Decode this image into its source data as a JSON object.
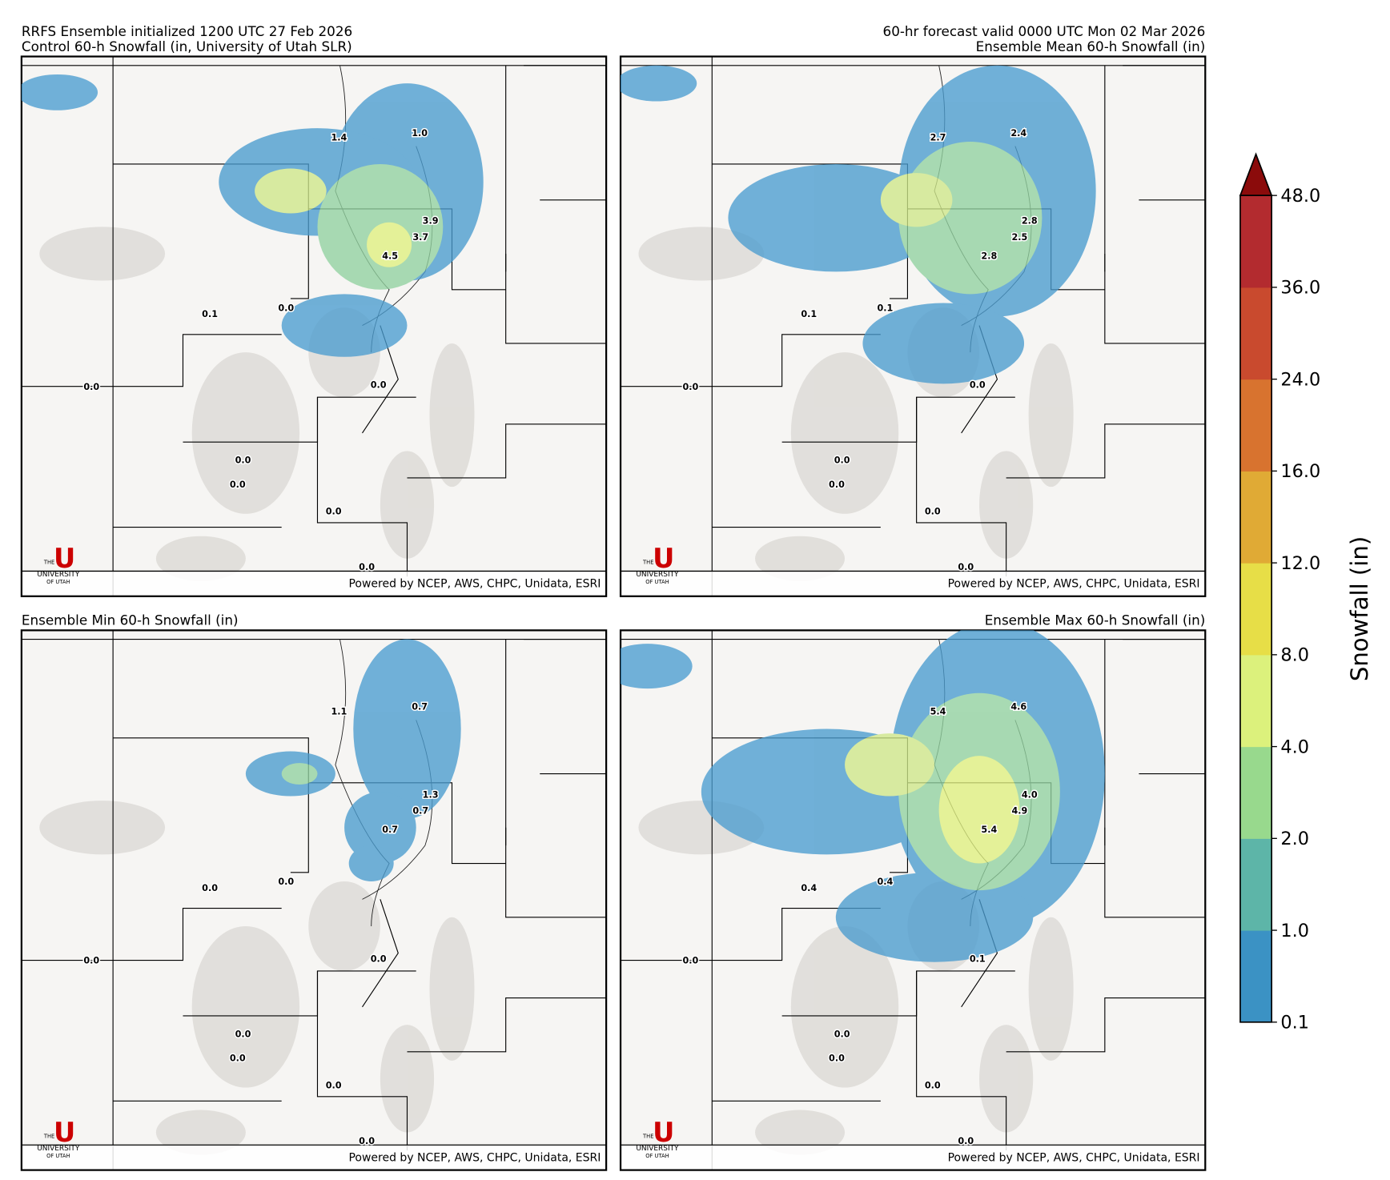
{
  "panels": [
    {
      "titles": [
        "RRFS Ensemble initialized 1200 UTC 27 Feb 2026",
        "Control 60-h Snowfall (in, University of Utah SLR)"
      ],
      "title_align": "left",
      "points": [
        "1.4",
        "1.0",
        "3.9",
        "3.7",
        "4.5",
        "0.1",
        "0.0",
        "0.0",
        "0.0",
        "0.0",
        "0.0",
        "0.0",
        "0.0"
      ]
    },
    {
      "titles": [
        "60-hr forecast valid 0000 UTC Mon 02 Mar 2026",
        "Ensemble Mean 60-h Snowfall (in)"
      ],
      "title_align": "right",
      "points": [
        "2.7",
        "2.4",
        "2.8",
        "2.5",
        "2.8",
        "0.1",
        "0.1",
        "0.0",
        "0.0",
        "0.0",
        "0.0",
        "0.0",
        "0.0"
      ]
    },
    {
      "titles": [
        "Ensemble Min 60-h Snowfall (in)"
      ],
      "title_align": "left",
      "points": [
        "1.1",
        "0.7",
        "1.3",
        "0.7",
        "0.7",
        "0.0",
        "0.0",
        "0.0",
        "0.0",
        "0.0",
        "0.0",
        "0.0",
        "0.0"
      ]
    },
    {
      "titles": [
        "Ensemble Max 60-h Snowfall (in)"
      ],
      "title_align": "right",
      "points": [
        "5.4",
        "4.6",
        "4.0",
        "4.9",
        "5.4",
        "0.4",
        "0.4",
        "0.0",
        "0.1",
        "0.0",
        "0.0",
        "0.0",
        "0.0"
      ]
    }
  ],
  "credit": "Powered by NCEP, AWS, CHPC, Unidata, ESRI",
  "logo": {
    "mark": "U",
    "line1": "THE",
    "line2": "UNIVERSITY",
    "line3": "OF UTAH"
  },
  "colorbar": {
    "label": "Snowfall (in)",
    "colors": [
      "#3b92c4",
      "#5db5a8",
      "#98d98d",
      "#dcf17c",
      "#e7de47",
      "#e0aa35",
      "#d8732f",
      "#c94a2e",
      "#b32b2f"
    ],
    "extend_color": "#8b0b0b",
    "ticks": [
      {
        "value": 0.1,
        "label": "0.1"
      },
      {
        "value": 1,
        "label": "1.0"
      },
      {
        "value": 2,
        "label": "2.0"
      },
      {
        "value": 4,
        "label": "4.0"
      },
      {
        "value": 8,
        "label": "8.0"
      },
      {
        "value": 12,
        "label": "12.0"
      },
      {
        "value": 16,
        "label": "16.0"
      },
      {
        "value": 24,
        "label": "24.0"
      },
      {
        "value": 36,
        "label": "36.0"
      },
      {
        "value": 48,
        "label": "48.0"
      }
    ]
  }
}
